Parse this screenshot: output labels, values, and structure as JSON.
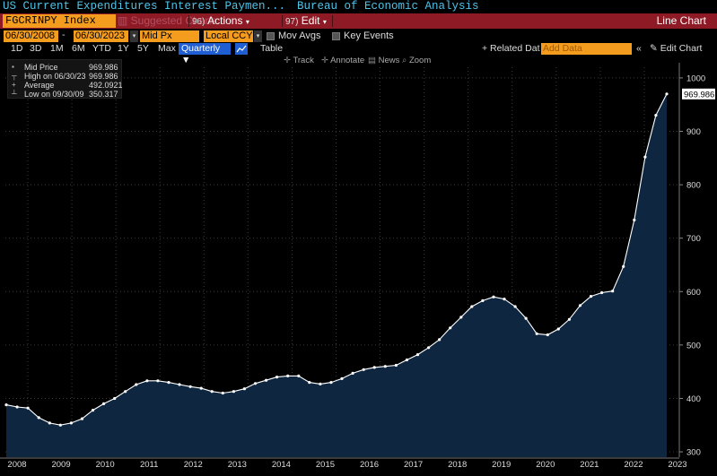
{
  "header": {
    "security_title": "US Current Expenditures Interest Paymen...",
    "source": "Bureau of Economic Analysis"
  },
  "toolbar": {
    "ticker": "FGCRINPY Index",
    "suggested_label": "Suggested Charts",
    "actions_num": "96)",
    "actions_label": "Actions",
    "edit_num": "97)",
    "edit_label": "Edit",
    "chart_type": "Line Chart"
  },
  "controls": {
    "start_date": "06/30/2008",
    "end_date": "06/30/2023",
    "price_field": "Mid Px",
    "currency": "Local CCY",
    "mov_avgs": "Mov Avgs",
    "key_events": "Key Events",
    "ranges": [
      "1D",
      "3D",
      "1M",
      "6M",
      "YTD",
      "1Y",
      "5Y",
      "Max"
    ],
    "periodicity": "Quarterly",
    "table_label": "Table",
    "related_label": "+ Related Dat",
    "add_data_placeholder": "Add Data",
    "edit_chart_label": "Edit Chart",
    "tools": [
      "Track",
      "Annotate",
      "News",
      "Zoom"
    ]
  },
  "legend": {
    "rows": [
      {
        "label": "Mid Price",
        "value": "969.986"
      },
      {
        "label": "High on 06/30/23",
        "value": "969.986"
      },
      {
        "label": "Average",
        "value": "492.0921"
      },
      {
        "label": "Low on 09/30/09",
        "value": "350.317"
      }
    ]
  },
  "colors": {
    "line": "#ffffff",
    "fill": "#0e2640",
    "accent_orange": "#f39c1e",
    "ticker_bar": "#8e1a25"
  },
  "chart_data": {
    "type": "area",
    "x_labels": [
      "2008",
      "2009",
      "2010",
      "2011",
      "2012",
      "2013",
      "2014",
      "2015",
      "2016",
      "2017",
      "2018",
      "2019",
      "2020",
      "2021",
      "2022",
      "2023"
    ],
    "y_ticks": [
      300,
      400,
      500,
      600,
      700,
      800,
      900,
      1000
    ],
    "ylim": [
      290,
      1020
    ],
    "grid": true,
    "legend_position": "top-left",
    "last_value_label": "969.986",
    "series": [
      {
        "name": "Mid Price",
        "values": [
          388,
          384,
          382,
          364,
          354,
          350,
          354,
          362,
          378,
          390,
          400,
          413,
          426,
          433,
          433,
          430,
          426,
          422,
          419,
          413,
          410,
          413,
          418,
          428,
          434,
          440,
          442,
          442,
          430,
          427,
          430,
          437,
          447,
          454,
          458,
          460,
          462,
          472,
          482,
          495,
          510,
          532,
          552,
          572,
          583,
          590,
          586,
          572,
          550,
          521,
          519,
          530,
          548,
          574,
          591,
          598,
          601,
          647,
          734,
          852,
          930,
          969.986
        ]
      }
    ]
  }
}
